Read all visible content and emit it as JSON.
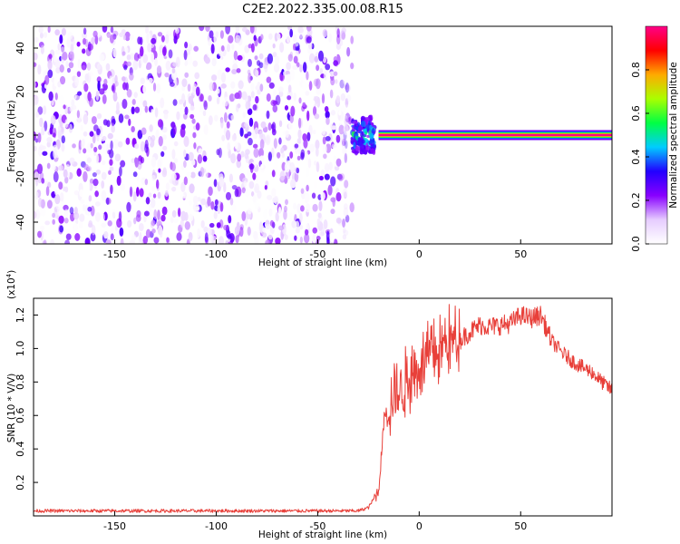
{
  "title": "C2E2.2022.335.00.08.R15",
  "chart_data": [
    {
      "type": "heatmap",
      "title": "C2E2.2022.335.00.08.R15",
      "xlabel": "Height of straight line (km)",
      "ylabel": "Frequency (Hz)",
      "xlim": [
        -190,
        95
      ],
      "ylim": [
        -50,
        50
      ],
      "xticks": [
        -150,
        -100,
        -50,
        0,
        50
      ],
      "yticks": [
        -40,
        -20,
        0,
        20,
        40
      ],
      "colorbar": {
        "label": "Normalized spectral amplitude",
        "range": [
          0,
          1
        ],
        "ticks": [
          0.0,
          0.2,
          0.4,
          0.6,
          0.8
        ],
        "colormap": [
          "#ffffff",
          "#e6ccff",
          "#8800ff",
          "#2200ff",
          "#00ccff",
          "#00ff44",
          "#aaff00",
          "#ffaa00",
          "#ff0000",
          "#ff0088"
        ]
      },
      "features": [
        {
          "name": "noise",
          "x_range": [
            -190,
            -33
          ],
          "freq_range": [
            -50,
            50
          ],
          "amplitude": [
            0.0,
            0.3
          ]
        },
        {
          "name": "transition",
          "x_range": [
            -33,
            -22
          ],
          "freq_range": [
            -8,
            8
          ],
          "amplitude": [
            0.2,
            0.6
          ]
        },
        {
          "name": "carrier",
          "x_range": [
            -20,
            95
          ],
          "freq": 0,
          "amplitude": 1.0
        }
      ],
      "grid": false
    },
    {
      "type": "line",
      "xlabel": "Height of straight line (km)",
      "ylabel": "SNR (10 * V/V)",
      "y_multiplier": "(x10^4)",
      "xlim": [
        -190,
        95
      ],
      "ylim": [
        0,
        1.3
      ],
      "xticks": [
        -150,
        -100,
        -50,
        0,
        50
      ],
      "yticks": [
        0.2,
        0.4,
        0.6,
        0.8,
        1.0,
        1.2
      ],
      "color": "#e8403a",
      "points": [
        [
          -190,
          0.03
        ],
        [
          -150,
          0.03
        ],
        [
          -100,
          0.03
        ],
        [
          -50,
          0.03
        ],
        [
          -30,
          0.03
        ],
        [
          -25,
          0.05
        ],
        [
          -20,
          0.15
        ],
        [
          -17,
          0.62
        ],
        [
          -12,
          0.7
        ],
        [
          -8,
          0.78
        ],
        [
          -5,
          0.82
        ],
        [
          -2,
          0.86
        ],
        [
          0,
          0.9
        ],
        [
          5,
          0.95
        ],
        [
          10,
          0.99
        ],
        [
          14,
          1.05
        ],
        [
          20,
          1.05
        ],
        [
          25,
          1.1
        ],
        [
          30,
          1.14
        ],
        [
          35,
          1.13
        ],
        [
          40,
          1.14
        ],
        [
          45,
          1.15
        ],
        [
          50,
          1.2
        ],
        [
          55,
          1.18
        ],
        [
          60,
          1.2
        ],
        [
          65,
          1.05
        ],
        [
          70,
          0.98
        ],
        [
          75,
          0.93
        ],
        [
          80,
          0.89
        ],
        [
          85,
          0.86
        ],
        [
          90,
          0.8
        ],
        [
          95,
          0.75
        ]
      ],
      "grid": false
    }
  ]
}
